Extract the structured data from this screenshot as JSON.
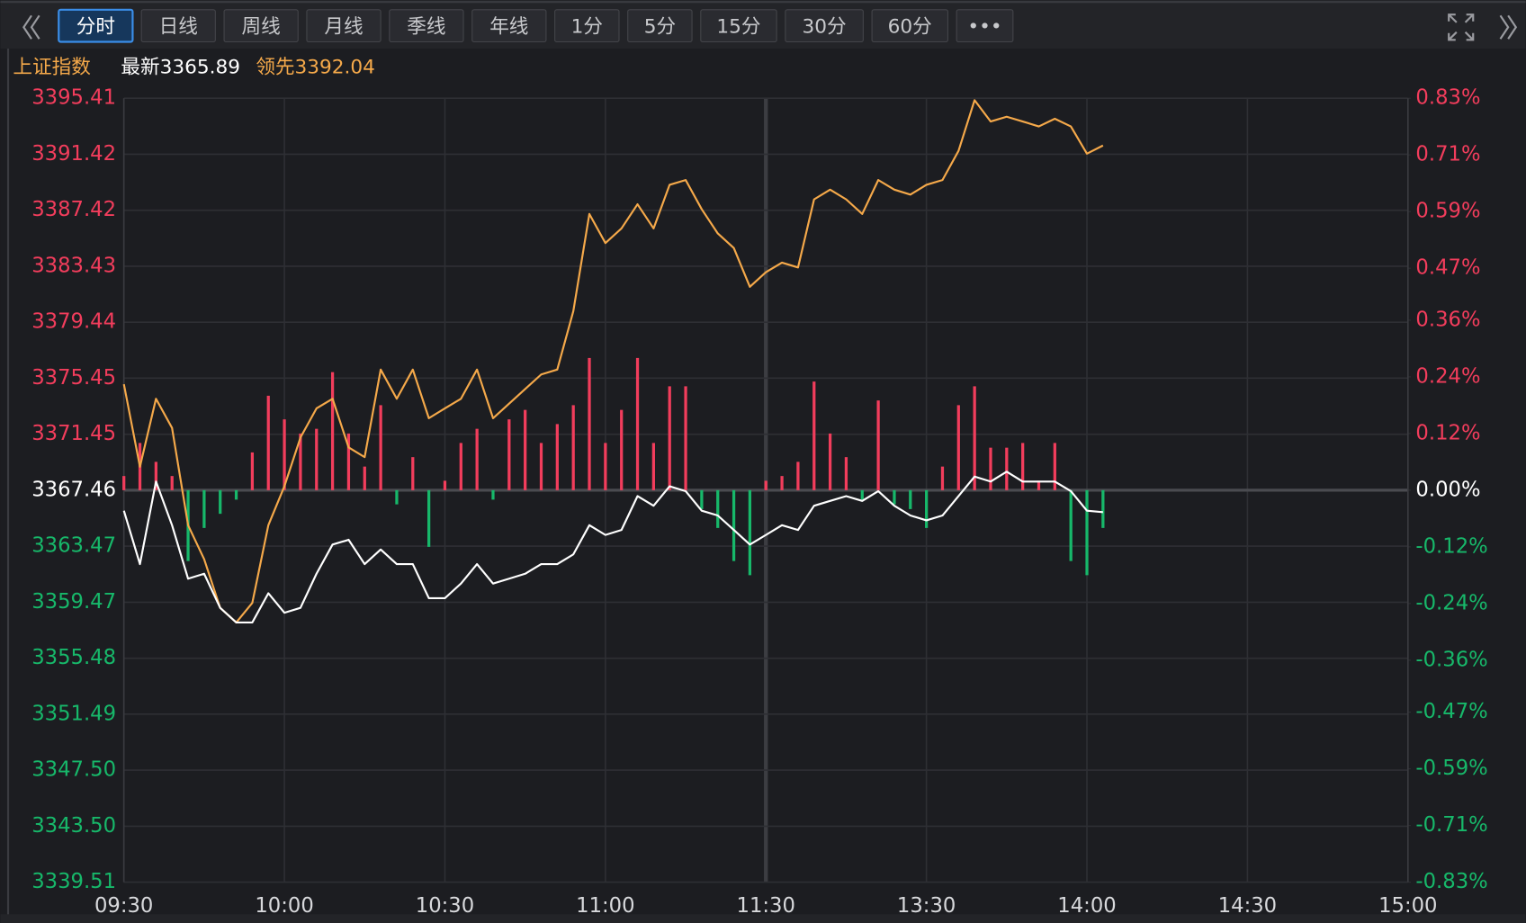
{
  "toolbar": {
    "tabs": [
      "分时",
      "日线",
      "周线",
      "月线",
      "季线",
      "年线",
      "1分",
      "5分",
      "15分",
      "30分",
      "60分",
      "•••"
    ],
    "active": 0
  },
  "chart_data": {
    "type": "line",
    "title": "上证指数",
    "x": [
      0,
      3,
      6,
      9,
      12,
      15,
      18,
      21,
      24,
      27,
      30,
      33,
      36,
      39,
      42,
      45,
      48,
      51,
      54,
      57,
      60,
      63,
      66,
      69,
      72,
      75,
      78,
      81,
      84,
      87,
      90,
      93,
      96,
      99,
      102,
      105,
      108,
      111,
      114,
      117,
      120,
      123,
      126,
      129,
      132,
      135,
      138,
      141,
      144,
      147,
      150,
      153,
      156,
      159,
      162,
      165,
      168,
      171,
      174,
      177,
      180,
      183
    ],
    "xlim": [
      0,
      240
    ],
    "xticks": [
      {
        "value": 0,
        "label": "09:30"
      },
      {
        "value": 30,
        "label": "10:00"
      },
      {
        "value": 60,
        "label": "10:30"
      },
      {
        "value": 90,
        "label": "11:00"
      },
      {
        "value": 120,
        "label": "11:30"
      },
      {
        "value": 150,
        "label": "13:30"
      },
      {
        "value": 180,
        "label": "14:00"
      },
      {
        "value": 210,
        "label": "14:30"
      },
      {
        "value": 240,
        "label": "15:00"
      }
    ],
    "ylim": [
      3339.51,
      3395.41
    ],
    "yticks": [
      3395.41,
      3391.42,
      3387.42,
      3383.43,
      3379.44,
      3375.45,
      3371.45,
      3367.46,
      3363.47,
      3359.47,
      3355.48,
      3351.49,
      {
        "value": 3347.5,
        "label": "3347.50"
      },
      {
        "value": 3343.5,
        "label": "3343.50"
      },
      3339.51
    ],
    "y2lim": [
      -0.83,
      0.83
    ],
    "y2ticks": [
      {
        "value": 0.83,
        "label": "0.83%"
      },
      {
        "value": 0.71,
        "label": "0.71%"
      },
      {
        "value": 0.59,
        "label": "0.59%"
      },
      {
        "value": 0.47,
        "label": "0.47%"
      },
      {
        "value": 0.36,
        "label": "0.36%"
      },
      {
        "value": 0.24,
        "label": "0.24%"
      },
      {
        "value": 0.12,
        "label": "0.12%"
      },
      {
        "value": 0,
        "label": "0.00%"
      },
      {
        "value": -0.12,
        "label": "-0.12%"
      },
      {
        "value": -0.24,
        "label": "-0.24%"
      },
      {
        "value": -0.36,
        "label": "-0.36%"
      },
      {
        "value": -0.47,
        "label": "-0.47%"
      },
      {
        "value": -0.59,
        "label": "-0.59%"
      },
      {
        "value": -0.71,
        "label": "-0.71%"
      },
      {
        "value": -0.83,
        "label": "-0.83%"
      }
    ],
    "grid": true,
    "up_color": "#f23d5c",
    "down_color": "#17b86a",
    "flat_color": "#ffffff",
    "series": [
      {
        "name": "最新",
        "color": "#ffffff",
        "values": [
          3366.0,
          3362.19,
          3368.08,
          3364.96,
          3361.15,
          3361.5,
          3359.07,
          3358.03,
          3358.03,
          3360.11,
          3358.72,
          3359.07,
          3361.5,
          3363.58,
          3363.92,
          3362.19,
          3363.23,
          3362.19,
          3362.19,
          3359.76,
          3359.76,
          3360.8,
          3362.19,
          3360.8,
          3361.15,
          3361.5,
          3362.19,
          3362.19,
          3362.88,
          3364.96,
          3364.27,
          3364.62,
          3367.04,
          3366.35,
          3367.74,
          3367.39,
          3366.0,
          3365.66,
          3364.62,
          3363.58,
          3364.27,
          3364.96,
          3364.62,
          3366.35,
          3366.7,
          3367.04,
          3366.7,
          3367.39,
          3366.35,
          3365.66,
          3365.31,
          3365.66,
          3367.04,
          3368.43,
          3368.08,
          3368.78,
          3368.08,
          3368.08,
          3368.08,
          3367.39,
          3366.0,
          3365.89
        ]
      },
      {
        "name": "领先",
        "color": "#f5a94a",
        "values": [
          3375.02,
          3369.13,
          3373.98,
          3371.9,
          3364.96,
          3362.54,
          3359.07,
          3358.03,
          3359.42,
          3364.96,
          3367.74,
          3371.21,
          3373.29,
          3373.98,
          3370.51,
          3369.82,
          3376.06,
          3373.98,
          3376.06,
          3372.59,
          3373.29,
          3373.98,
          3376.06,
          3372.59,
          3373.63,
          3374.67,
          3375.71,
          3376.06,
          3380.22,
          3387.16,
          3385.08,
          3386.12,
          3387.85,
          3386.12,
          3389.24,
          3389.58,
          3387.5,
          3385.77,
          3384.73,
          3381.96,
          3383.0,
          3383.69,
          3383.34,
          3388.2,
          3388.89,
          3388.2,
          3387.16,
          3389.58,
          3388.89,
          3388.54,
          3389.24,
          3389.58,
          3391.66,
          3395.27,
          3393.75,
          3394.09,
          3393.75,
          3393.4,
          3393.95,
          3393.4,
          3391.46,
          3392.04
        ]
      }
    ],
    "bars": {
      "axis": "y2",
      "values": [
        0.03,
        0.1,
        0.06,
        0.03,
        -0.15,
        -0.08,
        -0.05,
        -0.02,
        0.08,
        0.2,
        0.15,
        0.12,
        0.13,
        0.25,
        0.12,
        0.05,
        0.18,
        -0.03,
        0.07,
        -0.12,
        0.02,
        0.1,
        0.13,
        -0.02,
        0.15,
        0.17,
        0.1,
        0.14,
        0.18,
        0.28,
        0.1,
        0.17,
        0.28,
        0.1,
        0.22,
        0.22,
        -0.04,
        -0.08,
        -0.15,
        -0.18,
        0.02,
        0.03,
        0.06,
        0.23,
        0.12,
        0.07,
        -0.02,
        0.19,
        -0.03,
        -0.04,
        -0.08,
        0.05,
        0.18,
        0.22,
        0.09,
        0.09,
        0.1,
        0.02,
        0.1,
        -0.15,
        -0.18,
        -0.08
      ]
    }
  }
}
